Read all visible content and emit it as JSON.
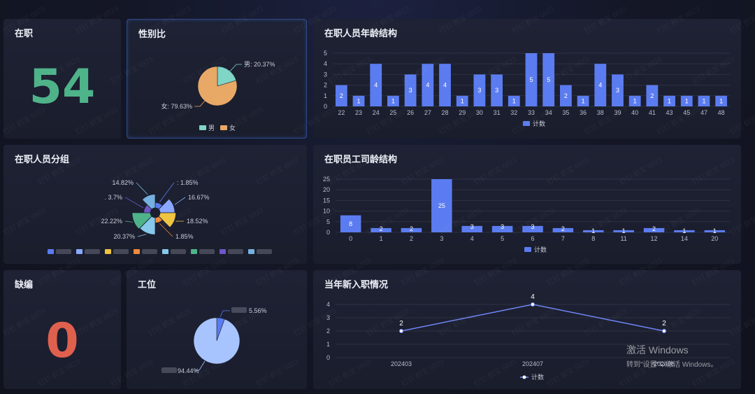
{
  "cards": {
    "employed": {
      "title": "在职",
      "value": "54",
      "color": "#4fb38a"
    },
    "gender": {
      "title": "性别比",
      "slices": [
        {
          "name": "男",
          "percent": 20.37,
          "label": "男: 20.37%",
          "color": "#7fd6c6"
        },
        {
          "name": "女",
          "percent": 79.63,
          "label": "女: 79.63%",
          "color": "#e8a866"
        }
      ]
    },
    "age": {
      "title": "在职人员年龄结构"
    },
    "groups": {
      "title": "在职人员分组",
      "slices": [
        {
          "label": ": 1.85%",
          "percent": 1.85,
          "color": "#5b7cf0"
        },
        {
          "label": "16.67%",
          "percent": 16.67,
          "color": "#8aa8ff"
        },
        {
          "label": "18.52%",
          "percent": 18.52,
          "color": "#f0c440"
        },
        {
          "label": "1.85%",
          "percent": 1.85,
          "color": "#f08a3a"
        },
        {
          "label": "20.37%",
          "percent": 20.37,
          "color": "#86c9ea"
        },
        {
          "label": "22.22%",
          "percent": 22.22,
          "color": "#4fb38a"
        },
        {
          "label": ". 3.7%",
          "percent": 3.7,
          "color": "#6e56c8"
        },
        {
          "label": "14.82%",
          "percent": 14.82,
          "color": "#76b0e0"
        }
      ],
      "legend_colors": [
        "#5b7cf0",
        "#8aa8ff",
        "#f0c440",
        "#f08a3a",
        "#86c9ea",
        "#4fb38a",
        "#6e56c8",
        "#76b0e0"
      ]
    },
    "tenure": {
      "title": "在职员工司龄结构"
    },
    "vacancy": {
      "title": "缺编",
      "value": "0",
      "color": "#e0604e"
    },
    "workstation": {
      "title": "工位",
      "slices": [
        {
          "label": "5.56%",
          "percent": 5.56,
          "color": "#5b7cf0"
        },
        {
          "label": "94.44%",
          "percent": 94.44,
          "color": "#a8c4ff"
        }
      ]
    },
    "newhires": {
      "title": "当年新入职情况"
    }
  },
  "chart_data": [
    {
      "type": "bar",
      "categories": [
        "22",
        "23",
        "24",
        "25",
        "26",
        "27",
        "28",
        "29",
        "30",
        "31",
        "32",
        "33",
        "34",
        "35",
        "36",
        "38",
        "39",
        "40",
        "41",
        "43",
        "45",
        "47",
        "48"
      ],
      "values": [
        2,
        1,
        4,
        1,
        3,
        4,
        4,
        1,
        3,
        3,
        1,
        5,
        5,
        2,
        1,
        4,
        3,
        1,
        2,
        1,
        1,
        1,
        1
      ],
      "ylim": [
        0,
        5
      ],
      "yticks": [
        0,
        1,
        2,
        3,
        4,
        5
      ],
      "legend": "计数",
      "color": "#5b7cf0",
      "grid": true
    },
    {
      "type": "bar",
      "categories": [
        "0",
        "1",
        "2",
        "3",
        "4",
        "5",
        "6",
        "7",
        "8",
        "11",
        "12",
        "14",
        "20"
      ],
      "values": [
        8,
        2,
        2,
        25,
        3,
        3,
        3,
        2,
        1,
        1,
        2,
        1,
        1
      ],
      "ylim": [
        0,
        25
      ],
      "yticks": [
        0,
        5,
        10,
        15,
        20,
        25
      ],
      "legend": "计数",
      "color": "#5b7cf0",
      "grid": true
    },
    {
      "type": "line",
      "categories": [
        "202403",
        "202407",
        "202408"
      ],
      "values": [
        2,
        4,
        2
      ],
      "ylim": [
        0,
        4
      ],
      "yticks": [
        0,
        1,
        2,
        3,
        4
      ],
      "legend": "计数",
      "color": "#6f86f5",
      "grid": true
    }
  ],
  "watermark": "钉钉 鹤宝 6823",
  "windows_activation": {
    "line1": "激活 Windows",
    "line2": "转到\"设置\"以激活 Windows。"
  }
}
